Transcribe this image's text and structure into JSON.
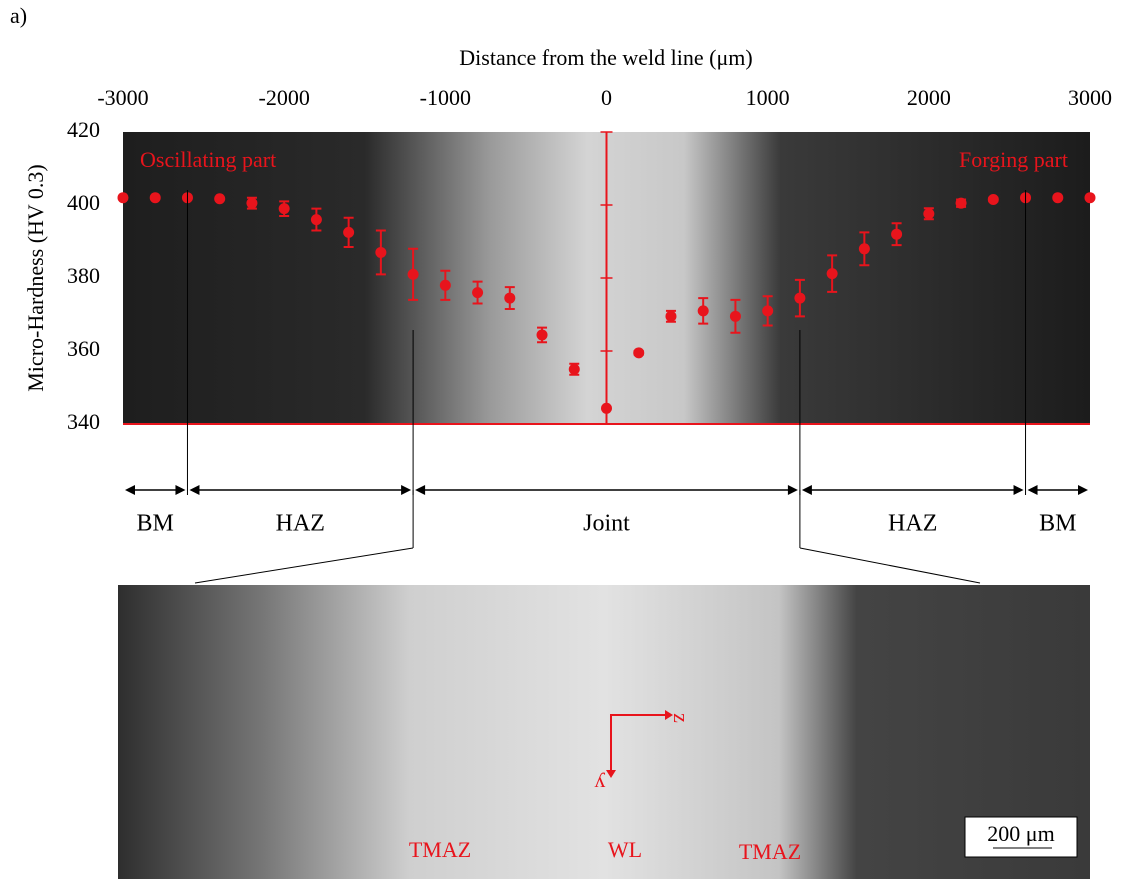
{
  "chart_data": {
    "type": "scatter",
    "panel_label": "a)",
    "x_label": "Distance from the weld line (μm)",
    "y_label": "Micro-Hardness  (HV 0.3)",
    "x": [
      -3000,
      -2800,
      -2600,
      -2400,
      -2200,
      -2000,
      -1800,
      -1600,
      -1400,
      -1200,
      -1000,
      -800,
      -600,
      -400,
      -200,
      0,
      200,
      400,
      600,
      800,
      1000,
      1200,
      1400,
      1600,
      1800,
      2000,
      2200,
      2400,
      2600,
      2800,
      3000
    ],
    "values": [
      402,
      402,
      402,
      401.7,
      400.5,
      399,
      396,
      392.5,
      387,
      381,
      378,
      376,
      374.5,
      364.4,
      355,
      344.3,
      359.5,
      369.5,
      371,
      369.5,
      371,
      374.5,
      381.2,
      388,
      392,
      397.6,
      400.5,
      401.5,
      402,
      402,
      402
    ],
    "errors": [
      0,
      0,
      0,
      0,
      1.5,
      2,
      3,
      4,
      6,
      7,
      4,
      3,
      3,
      2,
      1.5,
      0,
      0.5,
      1.5,
      3.5,
      4.5,
      4,
      5,
      5,
      4.5,
      3,
      1.5,
      1,
      0.5,
      0,
      0,
      0
    ],
    "color": "#e8141c",
    "xlim": [
      -3000,
      3000
    ],
    "xticks": [
      -3000,
      -2000,
      -1000,
      0,
      1000,
      2000,
      3000
    ],
    "ylim": [
      340,
      420
    ],
    "yticks": [
      340,
      360,
      380,
      400,
      420
    ],
    "annotations": [
      "Oscillating part",
      "Forging part"
    ],
    "zone_boundaries": [
      -2600,
      -1200,
      1200,
      2600
    ],
    "zones": [
      "BM",
      "HAZ",
      "Joint",
      "HAZ",
      "BM"
    ],
    "micrograph_labels": [
      "TMAZ",
      "WL",
      "TMAZ"
    ],
    "axis_labels": [
      "y",
      "z"
    ],
    "scale_bar": "200 μm"
  }
}
